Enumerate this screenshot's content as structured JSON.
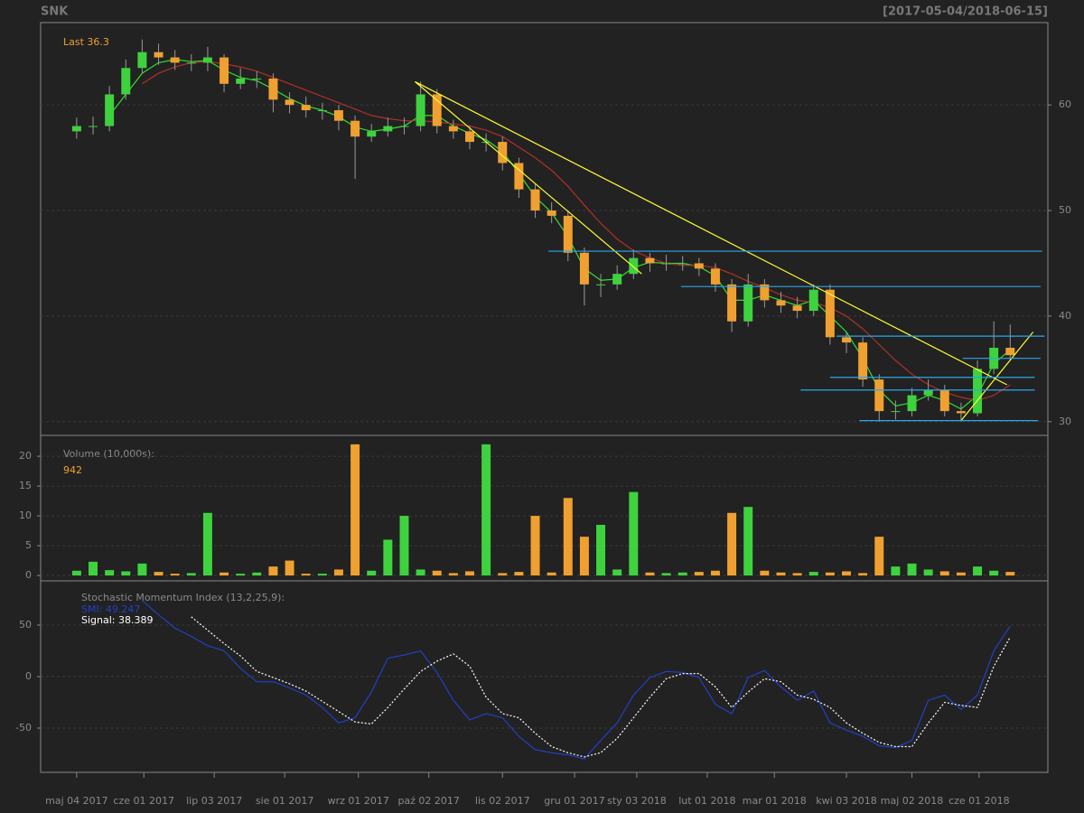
{
  "chart_data": [
    {
      "type": "candlestick",
      "title": "SNK",
      "subtitle": "[2017-05-04/2018-06-15]",
      "annotation": "Last 36.3",
      "up_color": "#3fd23f",
      "down_color": "#f0a030",
      "grid": true,
      "xlim": [
        -2.2,
        59.3
      ],
      "ylim": [
        28.7,
        67.8
      ],
      "yticks": [
        30,
        40,
        50,
        60
      ],
      "open": [
        57.5,
        58,
        58,
        61,
        63.5,
        65,
        64.5,
        64,
        64,
        64.5,
        62,
        62.5,
        62.5,
        60.5,
        60,
        59.5,
        59.5,
        58.5,
        57,
        57.5,
        58,
        58,
        61,
        58,
        57.5,
        56.5,
        56.5,
        54.5,
        52,
        50,
        49.5,
        46,
        43,
        43,
        44,
        45.5,
        45,
        45,
        45,
        44.5,
        43,
        39.5,
        43,
        41.5,
        41,
        40.5,
        42.5,
        38,
        37.5,
        34,
        31,
        31,
        32.5,
        33,
        31,
        30.8,
        35,
        37
      ],
      "high": [
        58.8,
        58.9,
        61.8,
        64.3,
        66.2,
        65.8,
        65.2,
        64.8,
        65.5,
        64.8,
        63.5,
        63.2,
        63,
        61.2,
        60.8,
        60.2,
        60,
        59,
        58.2,
        58.8,
        58.8,
        62.2,
        61.5,
        58.6,
        58,
        57.3,
        57,
        55,
        52.5,
        50.8,
        50,
        46.5,
        44,
        44.8,
        46.3,
        46,
        45.8,
        45.7,
        45.5,
        45,
        43.5,
        44,
        43.5,
        42.3,
        41.8,
        43,
        43,
        38.5,
        38,
        34.5,
        32,
        33.2,
        34,
        33.5,
        31.8,
        35.8,
        39.5,
        39.2
      ],
      "low": [
        56.8,
        57.2,
        57.5,
        60.5,
        63,
        63.8,
        63.3,
        63.2,
        63.2,
        61.2,
        61.5,
        61.6,
        59.3,
        59.2,
        58.8,
        58.6,
        57.6,
        53,
        56.5,
        57,
        57.2,
        57.5,
        57.3,
        56.8,
        55.8,
        55.6,
        53.8,
        51.2,
        49.3,
        48.8,
        45.2,
        41,
        41.8,
        42.5,
        43.5,
        44.2,
        44.3,
        44.3,
        43.8,
        42.3,
        38.5,
        39,
        40.8,
        40.3,
        39.8,
        40,
        37.3,
        36.5,
        33.3,
        30,
        30.2,
        30.5,
        32,
        30.5,
        30,
        30.5,
        34.5,
        35.8
      ],
      "close": [
        58,
        58,
        61,
        63.5,
        65,
        64.5,
        64,
        64,
        64.5,
        62,
        62.5,
        62.5,
        60.5,
        60,
        59.5,
        59.5,
        58.5,
        57,
        57.5,
        58,
        58,
        61,
        58,
        57.5,
        56.5,
        56.5,
        54.5,
        52,
        50,
        49.5,
        46,
        43,
        43,
        44,
        45.5,
        45,
        45,
        45,
        44.5,
        43,
        39.5,
        43,
        41.5,
        41,
        40.5,
        42.5,
        38,
        37.5,
        34,
        31,
        31,
        32.5,
        33,
        31,
        30.8,
        35,
        37,
        36.3
      ],
      "moving_averages": [
        {
          "color": "#33dd33",
          "values": [
            null,
            null,
            59,
            61,
            63,
            64,
            64.3,
            64.1,
            64.2,
            63.3,
            62.6,
            62.3,
            61.5,
            60.6,
            59.9,
            59.5,
            58.9,
            57.9,
            57.5,
            57.7,
            58,
            59,
            59,
            58,
            57.3,
            56.7,
            55.6,
            53.5,
            51.3,
            49.8,
            47.5,
            44.5,
            43.4,
            43.5,
            44.6,
            45.1,
            45,
            45,
            44.7,
            43.8,
            41.5,
            41.5,
            42,
            41.5,
            41,
            41.5,
            40,
            38.5,
            36,
            33,
            31.5,
            31.8,
            32.5,
            32,
            31.2,
            32.5,
            35.5,
            36.8
          ]
        },
        {
          "color": "#b0302a",
          "values": [
            null,
            null,
            null,
            null,
            62,
            63,
            63.6,
            64,
            64.1,
            63.9,
            63.6,
            63.2,
            62.6,
            62,
            61.4,
            60.8,
            60.2,
            59.6,
            59,
            58.7,
            58.5,
            58.5,
            58.4,
            58.2,
            58,
            57.6,
            57,
            56,
            55,
            53.8,
            52.3,
            50.5,
            48.8,
            47.3,
            46.2,
            45.5,
            45,
            44.8,
            44.8,
            44.6,
            44,
            43.3,
            42.7,
            42,
            41.5,
            41.3,
            40.8,
            40,
            38.8,
            37.3,
            35.8,
            34.5,
            33.5,
            32.8,
            32.3,
            32,
            32.5,
            33.5
          ]
        }
      ],
      "trendlines": [
        {
          "color": "#ffff33",
          "x": [
            20.66,
            56.8
          ],
          "y": [
            62.2,
            33.5
          ]
        },
        {
          "color": "#ffff33",
          "x": [
            20.66,
            34.5
          ],
          "y": [
            62.2,
            44
          ]
        },
        {
          "color": "#ffff33",
          "x": [
            54,
            58.4
          ],
          "y": [
            30.1,
            38.5
          ]
        }
      ],
      "levels": [
        {
          "color": "#2aa8e8",
          "y": 46.15,
          "x": [
            28.8,
            58.95
          ]
        },
        {
          "color": "#2aa8e8",
          "y": 42.8,
          "x": [
            36.9,
            58.85
          ]
        },
        {
          "color": "#2aa8e8",
          "y": 38.1,
          "x": [
            46.4,
            59.1
          ]
        },
        {
          "color": "#2aa8e8",
          "y": 36,
          "x": [
            54.1,
            58.85
          ]
        },
        {
          "color": "#2aa8e8",
          "y": 34.2,
          "x": [
            46,
            58.5
          ]
        },
        {
          "color": "#2aa8e8",
          "y": 33,
          "x": [
            44.2,
            58.5
          ]
        },
        {
          "color": "#2aa8e8",
          "y": 30.1,
          "x": [
            47.8,
            58.7
          ]
        }
      ]
    },
    {
      "type": "bar",
      "title": "Volume (10,000s):",
      "annotation": "942",
      "grid": true,
      "xlim": [
        -2.2,
        59.3
      ],
      "ylim": [
        -0.9,
        23.5
      ],
      "yticks": [
        0,
        5,
        10,
        15,
        20
      ],
      "values": [
        0.8,
        2.3,
        0.9,
        0.7,
        2,
        0.6,
        0.3,
        0.4,
        10.5,
        0.5,
        0.3,
        0.5,
        1.5,
        2.5,
        0.3,
        0.3,
        1,
        22,
        0.8,
        6,
        10,
        1,
        0.8,
        0.4,
        0.7,
        22,
        0.4,
        0.6,
        10,
        0.5,
        13,
        6.5,
        8.5,
        1,
        14,
        0.5,
        0.4,
        0.5,
        0.6,
        0.8,
        10.5,
        11.5,
        0.8,
        0.5,
        0.4,
        0.6,
        0.5,
        0.7,
        0.4,
        6.5,
        1.5,
        2,
        1,
        0.7,
        0.5,
        1.5,
        0.8,
        0.6
      ]
    },
    {
      "type": "line",
      "title": "Stochastic Momentum Index (13,2,25,9):",
      "grid": true,
      "xlim": [
        -2.2,
        59.3
      ],
      "ylim": [
        -93,
        93
      ],
      "yticks": [
        -50,
        0,
        50
      ],
      "xticks": [
        {
          "value": 0,
          "label": "maj 04 2017"
        },
        {
          "value": 4.1,
          "label": "cze 01 2017"
        },
        {
          "value": 8.4,
          "label": "lip 03 2017"
        },
        {
          "value": 12.7,
          "label": "sie 01 2017"
        },
        {
          "value": 17.2,
          "label": "wrz 01 2017"
        },
        {
          "value": 21.5,
          "label": "paź 02 2017"
        },
        {
          "value": 26,
          "label": "lis 02 2017"
        },
        {
          "value": 30.4,
          "label": "gru 01 2017"
        },
        {
          "value": 34.2,
          "label": "sty 03 2018"
        },
        {
          "value": 38.5,
          "label": "lut 01 2018"
        },
        {
          "value": 42.6,
          "label": "mar 01 2018"
        },
        {
          "value": 47,
          "label": "kwi 03 2018"
        },
        {
          "value": 51,
          "label": "maj 02 2018"
        },
        {
          "value": 55.1,
          "label": "cze 01 2018"
        }
      ],
      "series": [
        {
          "name": "SMI: 49.247",
          "color": "#2040c8",
          "dashed": false,
          "values": [
            null,
            null,
            null,
            null,
            74,
            60,
            47,
            39,
            30,
            25,
            8,
            -5,
            -5,
            -11,
            -18,
            -30,
            -45,
            -40,
            -15,
            18,
            21,
            25,
            4,
            -23,
            -42,
            -36,
            -40,
            -58,
            -71,
            -74,
            -76,
            -80,
            -62,
            -45,
            -18,
            -1,
            5,
            4,
            -1,
            -27,
            -36,
            -1,
            6,
            -10,
            -23,
            -14,
            -45,
            -52,
            -58,
            -67,
            -69,
            -62,
            -23,
            -18,
            -32,
            -18,
            25,
            49.2
          ]
        },
        {
          "name": "Signal: 38.389",
          "color": "#ffffff",
          "dashed": true,
          "values": [
            null,
            null,
            null,
            null,
            null,
            null,
            null,
            58,
            45,
            32,
            20,
            5,
            -1,
            -7,
            -14,
            -24,
            -34,
            -44,
            -46,
            -30,
            -12,
            5,
            15,
            22,
            10,
            -20,
            -36,
            -40,
            -55,
            -68,
            -74,
            -78,
            -74,
            -60,
            -40,
            -20,
            -2,
            3,
            3,
            -10,
            -30,
            -15,
            -2,
            -5,
            -18,
            -22,
            -30,
            -45,
            -55,
            -64,
            -68,
            -68,
            -45,
            -25,
            -28,
            -30,
            10,
            38.4
          ]
        }
      ]
    }
  ]
}
